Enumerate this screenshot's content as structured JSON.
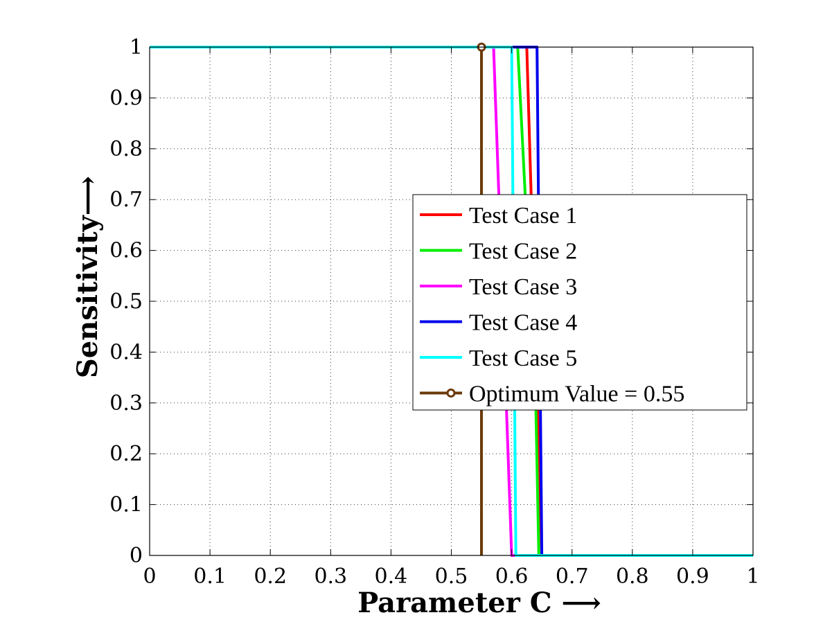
{
  "chart_data": {
    "type": "line",
    "xlabel": "Parameter C ⟶",
    "ylabel": "Sensitivity⟶",
    "xlim": [
      0,
      1
    ],
    "ylim": [
      0,
      1
    ],
    "xticks": [
      "0",
      "0.1",
      "0.2",
      "0.3",
      "0.4",
      "0.5",
      "0.6",
      "0.7",
      "0.8",
      "0.9",
      "1"
    ],
    "yticks": [
      "0",
      "0.1",
      "0.2",
      "0.3",
      "0.4",
      "0.5",
      "0.6",
      "0.7",
      "0.8",
      "0.9",
      "1"
    ],
    "grid": true,
    "legend_position": "center-right",
    "series": [
      {
        "name": "Test Case 1",
        "color": "#ff0000",
        "x": [
          0,
          0.625,
          0.65,
          1
        ],
        "y": [
          1,
          1,
          0,
          0
        ],
        "marker": "none"
      },
      {
        "name": "Test Case 2",
        "color": "#00ee00",
        "x": [
          0,
          0.61,
          0.64,
          0.645,
          1
        ],
        "y": [
          1,
          1,
          0.3,
          0,
          0
        ],
        "marker": "none"
      },
      {
        "name": "Test Case 3",
        "color": "#ff00ff",
        "x": [
          0,
          0.57,
          0.6,
          1
        ],
        "y": [
          1,
          1,
          0,
          0
        ],
        "marker": "none"
      },
      {
        "name": "Test Case 4",
        "color": "#0000ee",
        "x": [
          0,
          0.642,
          0.65,
          1
        ],
        "y": [
          1,
          1,
          0,
          0
        ],
        "marker": "none"
      },
      {
        "name": "Test Case 5",
        "color": "#00ffff",
        "x": [
          0,
          0.6,
          0.607,
          1
        ],
        "y": [
          1,
          1,
          0,
          0
        ],
        "marker": "none"
      },
      {
        "name": "Optimum Value = 0.55",
        "color": "#6b3a0a",
        "x": [
          0.55,
          0.55
        ],
        "y": [
          0,
          1
        ],
        "marker": "circle"
      }
    ]
  }
}
